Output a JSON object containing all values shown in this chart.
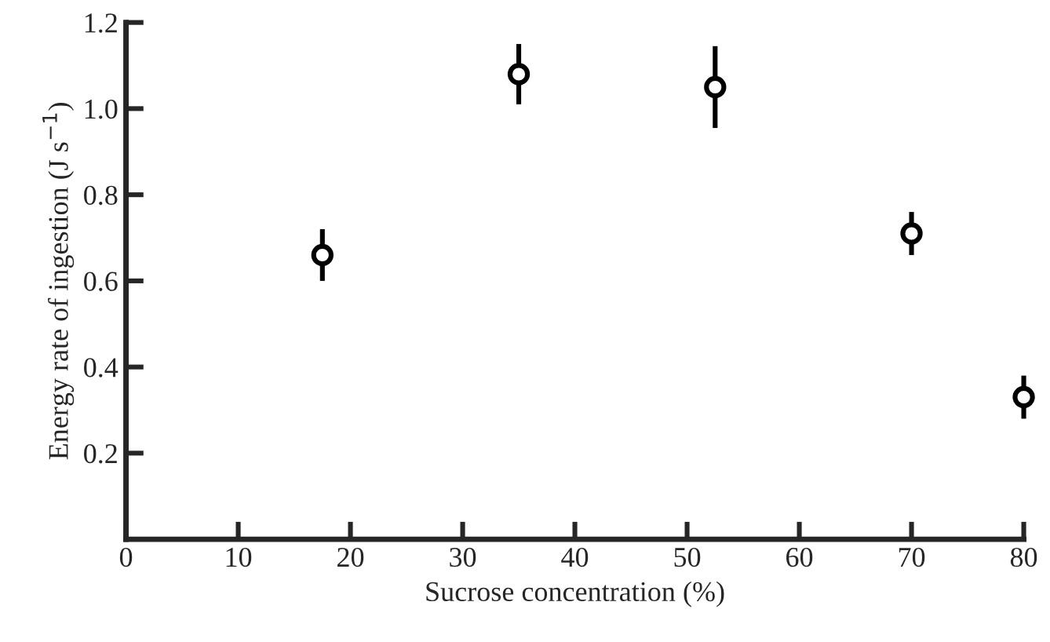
{
  "chart_data": {
    "type": "scatter",
    "xlabel": "Sucrose concentration (%)",
    "ylabel": "Energy rate of ingestion (J s$^{−1}$)",
    "x": [
      17.5,
      35,
      52.5,
      70,
      80
    ],
    "series": [
      {
        "color": "#000000",
        "values": [
          0.66,
          1.08,
          1.05,
          0.71,
          0.33
        ],
        "errors": [
          0.06,
          0.07,
          0.095,
          0.05,
          0.05
        ]
      }
    ],
    "xlim": [
      0,
      80
    ],
    "ylim": [
      0,
      1.2
    ],
    "xticks": [
      0,
      10,
      20,
      30,
      40,
      50,
      60,
      70,
      80
    ],
    "yticks": [
      0.2,
      0.4,
      0.6,
      0.8,
      {
        "value": 1.0,
        "label": "1.0"
      },
      1.2
    ],
    "marker": "circle",
    "grid": false,
    "legend": false
  }
}
